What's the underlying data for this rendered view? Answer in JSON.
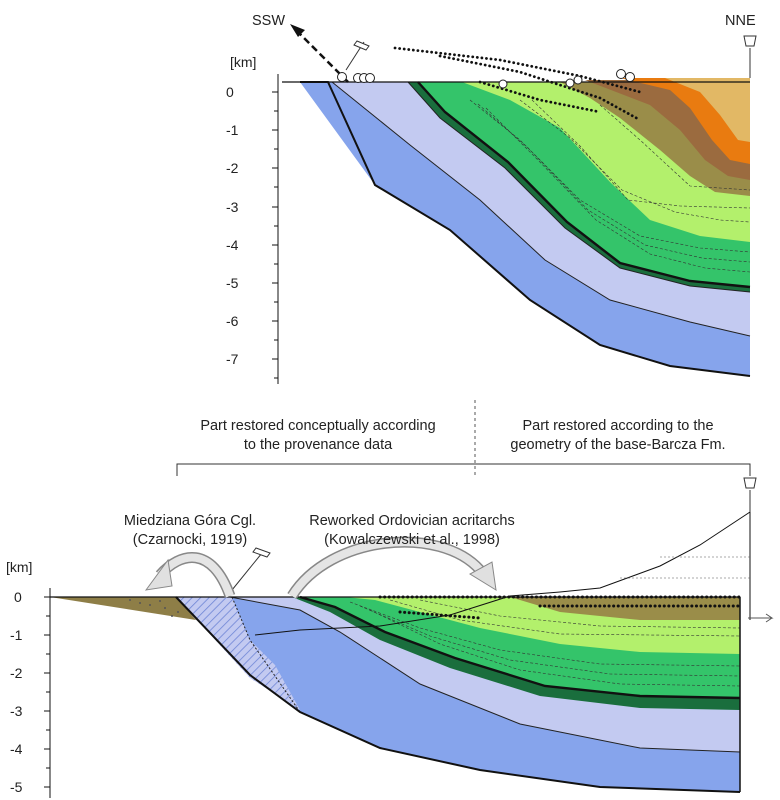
{
  "top_section": {
    "dir_left": "SSW",
    "dir_right": "NNE",
    "axis_unit": "[km]",
    "depth_ticks": [
      "0",
      "-1",
      "-2",
      "-3",
      "-4",
      "-5",
      "-6",
      "-7"
    ]
  },
  "middle_labels": {
    "left_line1": "Part restored conceptually according",
    "left_line2": "to the provenance data",
    "right_line1": "Part restored according to the",
    "right_line2": "geometry of the base-Barcza Fm."
  },
  "bottom_section": {
    "axis_unit": "[km]",
    "depth_ticks": [
      "0",
      "-1",
      "-2",
      "-3",
      "-4",
      "-5"
    ],
    "annotation_left_line1": "Miedziana Góra Cgl.",
    "annotation_left_line2": "(Czarnocki, 1919)",
    "annotation_right_line1": "Reworked Ordovician acritarchs",
    "annotation_right_line2": "(Kowalczewski et al., 1998)"
  },
  "colors": {
    "deep_blue": "#86a4ec",
    "light_blue": "#c3caf1",
    "dark_green": "#1a6e3d",
    "green": "#34c46a",
    "light_green": "#b3f06c",
    "olive": "#9a8d49",
    "brown": "#9b6b3f",
    "orange": "#e97b10",
    "tan": "#e2b865",
    "khaki": "#8e7e47"
  }
}
